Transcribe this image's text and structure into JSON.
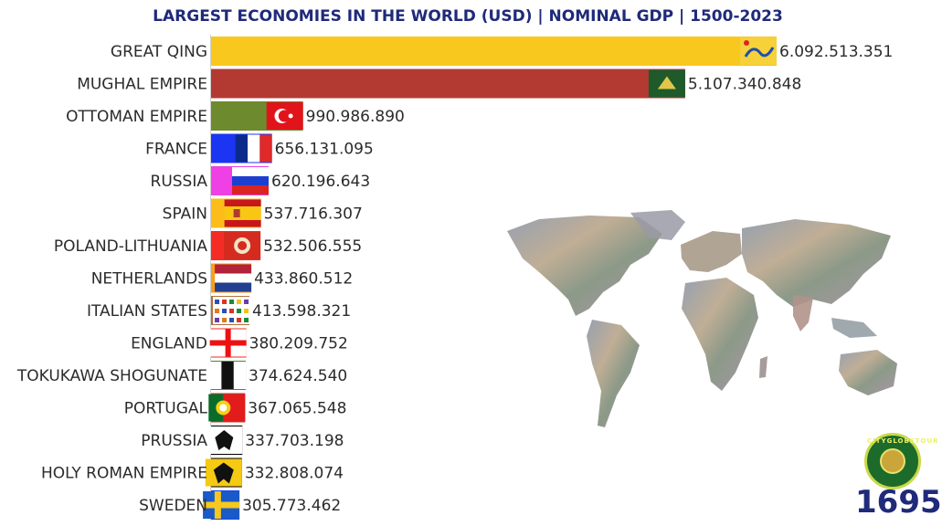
{
  "title": "LARGEST ECONOMIES IN THE WORLD (USD) | NOMINAL GDP | 1500-2023",
  "year": "1695",
  "logo": {
    "text": "CITYGLOBETOUR",
    "icon": "globe-logo-icon"
  },
  "map": {
    "icon": "world-map-icon"
  },
  "chart_data": {
    "type": "bar",
    "orientation": "horizontal",
    "title": "LARGEST ECONOMIES IN THE WORLD (USD) | NOMINAL GDP | 1500-2023",
    "xlim": [
      0,
      6200000000
    ],
    "grid": false,
    "categories": [
      "GREAT QING",
      "MUGHAL EMPIRE",
      "OTTOMAN EMPIRE",
      "FRANCE",
      "RUSSIA",
      "SPAIN",
      "POLAND-LITHUANIA",
      "NETHERLANDS",
      "ITALIAN STATES",
      "ENGLAND",
      "TOKUKAWA SHOGUNATE",
      "PORTUGAL",
      "PRUSSIA",
      "HOLY ROMAN EMPIRE",
      "SWEDEN"
    ],
    "values": [
      6092513351,
      5107340848,
      990986890,
      656131095,
      620196643,
      537716307,
      532506555,
      433860512,
      413598321,
      380209752,
      374624540,
      367065548,
      337703198,
      332808074,
      305773462
    ],
    "value_labels": [
      "6.092.513.351",
      "5.107.340.848",
      "990.986.890",
      "656.131.095",
      "620.196.643",
      "537.716.307",
      "532.506.555",
      "433.860.512",
      "413.598.321",
      "380.209.752",
      "374.624.540",
      "367.065.548",
      "337.703.198",
      "332.808.074",
      "305.773.462"
    ],
    "bar_colors": [
      "#f9c81e",
      "#b23a33",
      "#6e8a2e",
      "#1c35f2",
      "#ee40e4",
      "#fcbd1a",
      "#f42c25",
      "#fb9e1c",
      "#b0703e",
      "#f42a22",
      "#4f8634",
      "#b5413a",
      "#000000",
      "#000000",
      "#1840f0"
    ],
    "flags": [
      "qing-dragon-flag",
      "mughal-flag",
      "ottoman-flag",
      "france-flag",
      "russia-flag",
      "spain-flag",
      "poland-lithuania-flag",
      "netherlands-flag",
      "italian-states-flag",
      "england-flag",
      "tokugawa-flag",
      "portugal-flag",
      "prussia-flag",
      "holy-roman-empire-flag",
      "sweden-flag"
    ]
  }
}
